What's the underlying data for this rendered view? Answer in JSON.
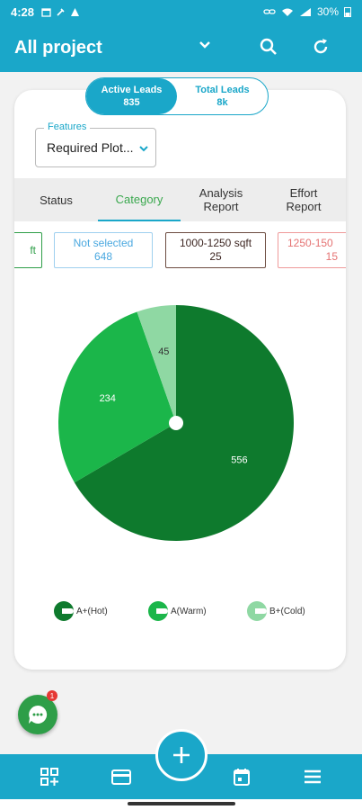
{
  "status": {
    "time": "4:28",
    "battery": "30%"
  },
  "header": {
    "title": "All project"
  },
  "leads": {
    "active_label": "Active Leads",
    "active_value": "835",
    "total_label": "Total Leads",
    "total_value": "8k"
  },
  "features": {
    "label": "Features",
    "value": "Required Plot..."
  },
  "tabs": [
    {
      "label": "Status"
    },
    {
      "label": "Category"
    },
    {
      "label": "Analysis Report"
    },
    {
      "label": "Effort Report"
    }
  ],
  "chips": [
    {
      "label": "ft",
      "count": ""
    },
    {
      "label": "Not selected",
      "count": "648",
      "color": "#4aa8e0"
    },
    {
      "label": "1000-1250 sqft",
      "count": "25",
      "color": "#6d4c41"
    },
    {
      "label": "1250-150",
      "count": "15",
      "color": "#e57373"
    }
  ],
  "chart_data": {
    "type": "pie",
    "slices": [
      {
        "name": "A+(Hot)",
        "value": 556,
        "color": "#0e7a2d"
      },
      {
        "name": "A(Warm)",
        "value": 234,
        "color": "#1bb64a"
      },
      {
        "name": "B+(Cold)",
        "value": 45,
        "color": "#8fd8a3"
      }
    ],
    "legend_position": "bottom"
  },
  "legend": [
    {
      "label": "A+(Hot)",
      "color": "#0e7a2d"
    },
    {
      "label": "A(Warm)",
      "color": "#1bb64a"
    },
    {
      "label": "B+(Cold)",
      "color": "#8fd8a3"
    }
  ],
  "chat": {
    "badge": "1"
  },
  "colors": {
    "primary": "#1aa7c9",
    "active_tab": "#3aa84e"
  }
}
